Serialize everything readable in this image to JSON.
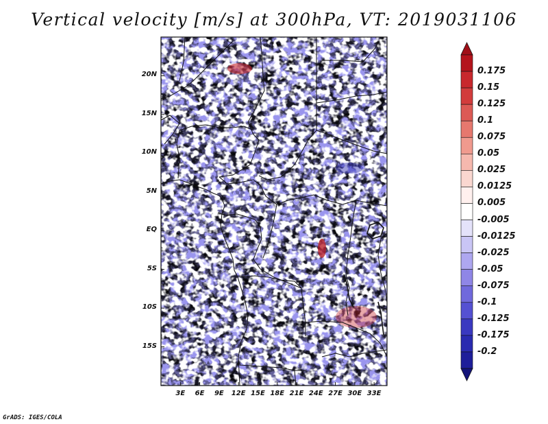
{
  "title": "Vertical velocity [m/s] at 300hPa, VT: 2019031106",
  "credit": "GrADS: IGES/COLA",
  "map": {
    "variable": "Vertical velocity",
    "units": "m/s",
    "level": "300hPa",
    "valid_time": "2019031106",
    "lon_range": [
      0,
      35
    ],
    "lat_range": [
      -20,
      25
    ],
    "lat_ticks": [
      {
        "value": 20,
        "label": "20N"
      },
      {
        "value": 15,
        "label": "15N"
      },
      {
        "value": 10,
        "label": "10N"
      },
      {
        "value": 5,
        "label": "5N"
      },
      {
        "value": 0,
        "label": "EQ"
      },
      {
        "value": -5,
        "label": "5S"
      },
      {
        "value": -10,
        "label": "10S"
      },
      {
        "value": -15,
        "label": "15S"
      }
    ],
    "lon_ticks": [
      {
        "value": 3,
        "label": "3E"
      },
      {
        "value": 6,
        "label": "6E"
      },
      {
        "value": 9,
        "label": "9E"
      },
      {
        "value": 12,
        "label": "12E"
      },
      {
        "value": 15,
        "label": "15E"
      },
      {
        "value": 18,
        "label": "18E"
      },
      {
        "value": 21,
        "label": "21E"
      },
      {
        "value": 24,
        "label": "24E"
      },
      {
        "value": 27,
        "label": "27E"
      },
      {
        "value": 30,
        "label": "30E"
      },
      {
        "value": 33,
        "label": "33E"
      }
    ]
  },
  "colorbar": {
    "labels": [
      "0.175",
      "0.15",
      "0.125",
      "0.1",
      "0.075",
      "0.05",
      "0.025",
      "0.0125",
      "0.005",
      "-0.005",
      "-0.0125",
      "-0.025",
      "-0.05",
      "-0.075",
      "-0.1",
      "-0.125",
      "-0.175",
      "-0.2"
    ],
    "colors": [
      "#b4141c",
      "#c8282d",
      "#d23c3c",
      "#dc5a55",
      "#e6786e",
      "#f09a8e",
      "#f6b8ae",
      "#fad7d0",
      "#fff0ee",
      "#ffffff",
      "#e4e2fa",
      "#c9c5f5",
      "#aea7f0",
      "#8f86e6",
      "#7069dc",
      "#5551d2",
      "#3a39c0",
      "#2a2bb0",
      "#1e1e9a"
    ],
    "top_color": "#a01018",
    "bottom_color": "#14147a"
  }
}
